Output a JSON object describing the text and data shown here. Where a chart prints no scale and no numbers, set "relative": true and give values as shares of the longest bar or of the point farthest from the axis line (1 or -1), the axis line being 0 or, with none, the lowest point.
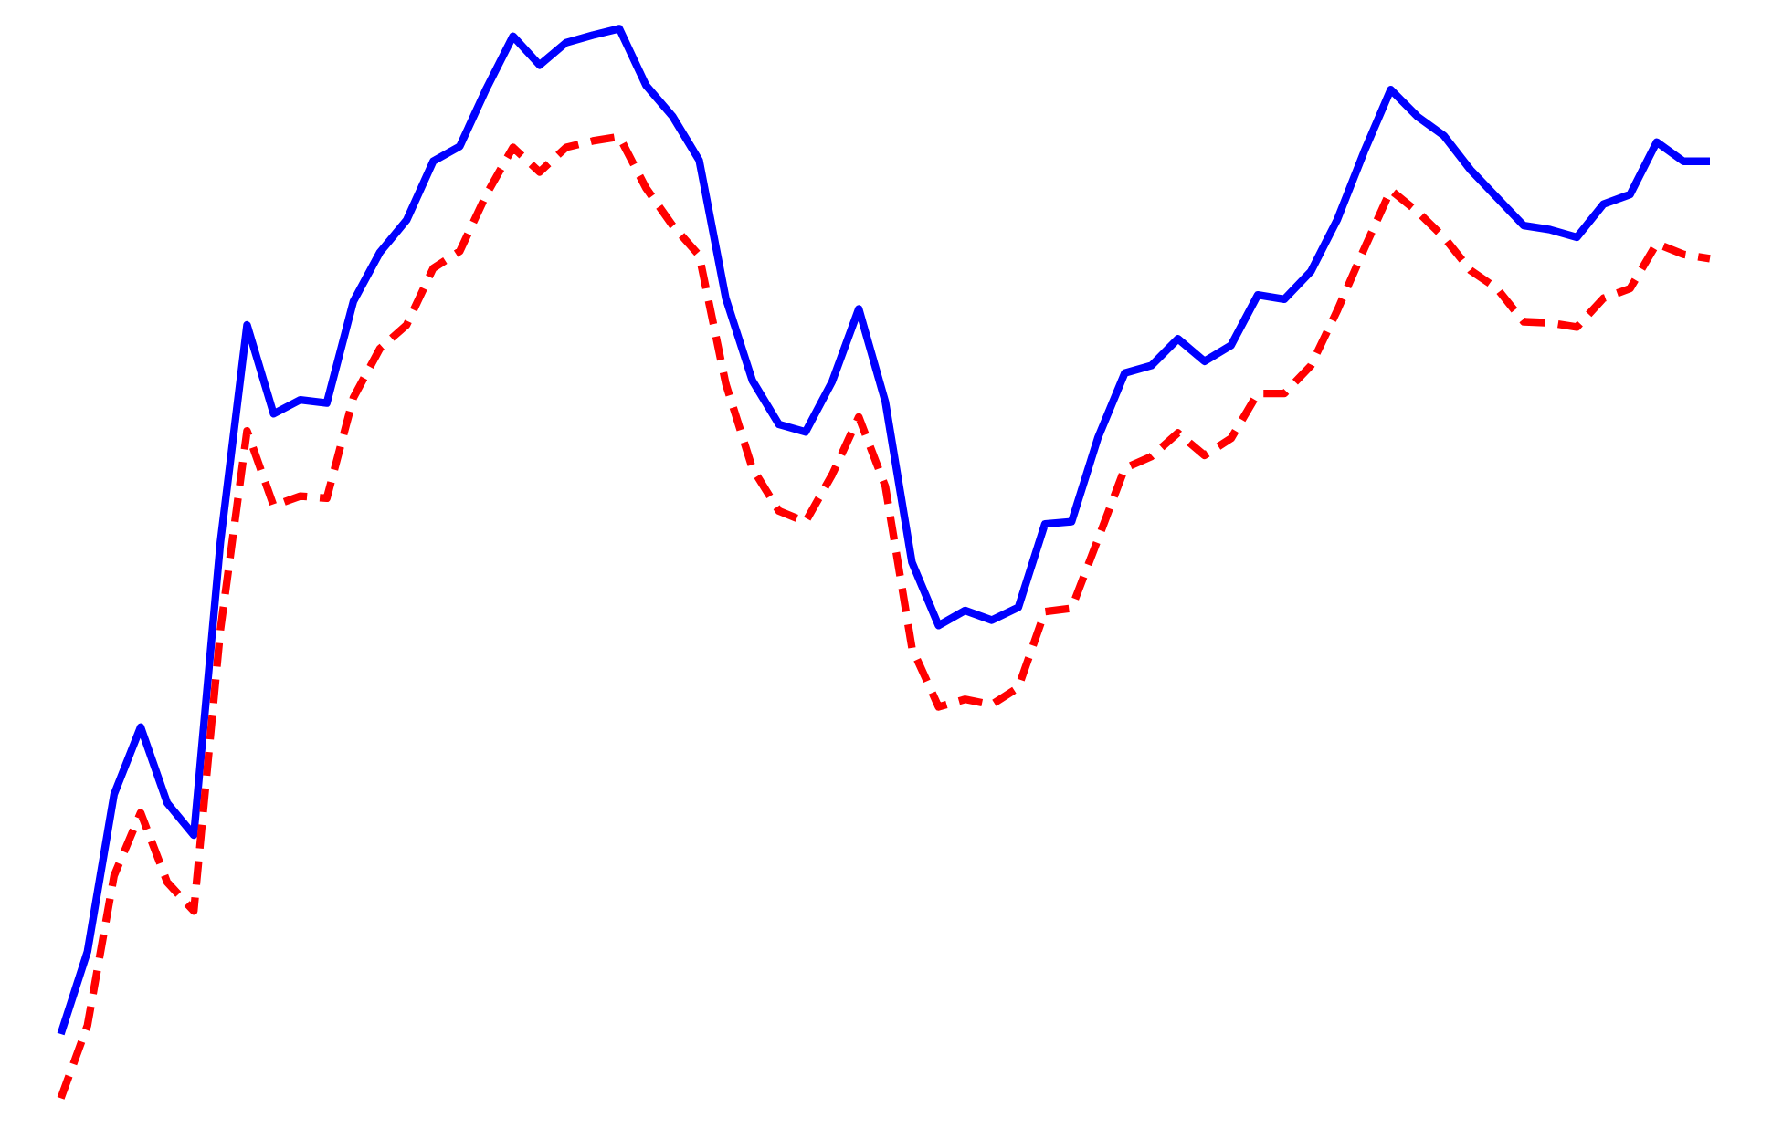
{
  "chart_data": {
    "type": "line",
    "relative": true,
    "categories": [
      null,
      null,
      null,
      null,
      null,
      null,
      null,
      null,
      null,
      null,
      null,
      null,
      null,
      null,
      null,
      null,
      null,
      null,
      null,
      null,
      null,
      null,
      null,
      null,
      null,
      null,
      null,
      null,
      null,
      null,
      null,
      null,
      null,
      null,
      null,
      null,
      null,
      null,
      null,
      null,
      null,
      null,
      null,
      null,
      null,
      null,
      null,
      null,
      null,
      null,
      null,
      null,
      null,
      null,
      null,
      null,
      null,
      null,
      null,
      null,
      null,
      null,
      null
    ],
    "series": [
      {
        "color": "#0000ff",
        "line_style": "solid",
        "values": [
          0.06,
          0.137,
          0.284,
          0.347,
          0.276,
          0.246,
          0.52,
          0.723,
          0.64,
          0.653,
          0.65,
          0.745,
          0.791,
          0.821,
          0.876,
          0.89,
          0.944,
          0.993,
          0.966,
          0.987,
          0.994,
          1.0,
          0.947,
          0.918,
          0.877,
          0.748,
          0.671,
          0.63,
          0.623,
          0.67,
          0.738,
          0.651,
          0.501,
          0.442,
          0.456,
          0.447,
          0.459,
          0.537,
          0.539,
          0.618,
          0.678,
          0.685,
          0.71,
          0.689,
          0.704,
          0.751,
          0.747,
          0.773,
          0.822,
          0.885,
          0.943,
          0.918,
          0.9,
          0.868,
          0.842,
          0.816,
          0.812,
          0.805,
          0.836,
          0.845,
          0.894,
          0.876,
          0.876
        ]
      },
      {
        "color": "#ff0000",
        "line_style": "dashed",
        "values": [
          0.0,
          0.068,
          0.208,
          0.267,
          0.202,
          0.175,
          0.438,
          0.624,
          0.554,
          0.563,
          0.561,
          0.655,
          0.701,
          0.723,
          0.776,
          0.792,
          0.845,
          0.889,
          0.866,
          0.889,
          0.895,
          0.899,
          0.851,
          0.816,
          0.788,
          0.668,
          0.589,
          0.549,
          0.539,
          0.583,
          0.637,
          0.572,
          0.421,
          0.366,
          0.373,
          0.368,
          0.384,
          0.455,
          0.458,
          0.523,
          0.589,
          0.6,
          0.622,
          0.601,
          0.617,
          0.659,
          0.659,
          0.685,
          0.737,
          0.794,
          0.849,
          0.829,
          0.805,
          0.774,
          0.757,
          0.726,
          0.725,
          0.721,
          0.748,
          0.757,
          0.799,
          0.789,
          0.785
        ]
      }
    ]
  }
}
